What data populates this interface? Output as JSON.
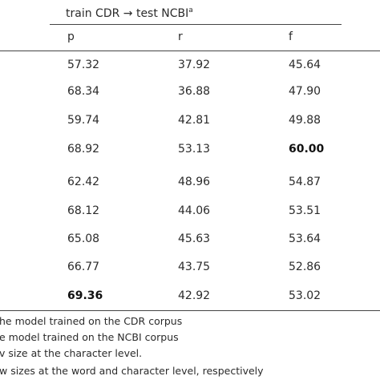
{
  "table": {
    "header": {
      "title": "train CDR → test NCBI",
      "sup": "a"
    },
    "columns": [
      "p",
      "r",
      "f"
    ],
    "rows": [
      [
        "57.32",
        "37.92",
        "45.64"
      ],
      [
        "68.34",
        "36.88",
        "47.90"
      ],
      [
        "59.74",
        "42.81",
        "49.88"
      ],
      [
        "68.92",
        "53.13",
        {
          "text": "60.00",
          "bold": true
        }
      ],
      [
        "62.42",
        "48.96",
        "54.87"
      ],
      [
        "68.12",
        "44.06",
        "53.51"
      ],
      [
        "65.08",
        "45.63",
        "53.64"
      ],
      [
        "66.77",
        "43.75",
        "52.86"
      ],
      [
        {
          "text": "69.36",
          "bold": true
        },
        "42.92",
        "53.02"
      ]
    ]
  },
  "footnotes": [
    "he model trained on the CDR corpus",
    "e model trained on the NCBI corpus",
    "v size at the character level.",
    "w sizes at the word and character level, respectively"
  ]
}
